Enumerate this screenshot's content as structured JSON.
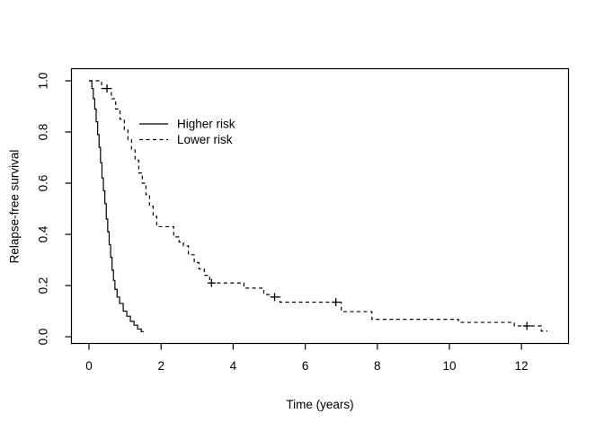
{
  "page": {
    "background_color": "#ffffff",
    "foreground_color": "#000000"
  },
  "chart_data": {
    "type": "line",
    "subtype": "kaplan-meier-step",
    "title": "",
    "xlabel": "Time (years)",
    "ylabel": "Relapse-free survival",
    "x_ticks": [
      0,
      2,
      4,
      6,
      8,
      10,
      12
    ],
    "y_ticks": [
      0.0,
      0.2,
      0.4,
      0.6,
      0.8,
      1.0
    ],
    "y_tick_labels": [
      "0.0",
      "0.2",
      "0.4",
      "0.6",
      "0.8",
      "1.0"
    ],
    "xlim": [
      0,
      12.72
    ],
    "ylim": [
      0,
      1
    ],
    "grid": false,
    "box": true,
    "line_color": "#000000",
    "legend": {
      "position": "upper-left-inside",
      "entries": [
        {
          "label": "Higher risk",
          "linestyle": "solid"
        },
        {
          "label": "Lower risk",
          "linestyle": "dashed"
        }
      ]
    },
    "series": [
      {
        "name": "Higher risk",
        "linestyle": "solid",
        "color": "#000000",
        "steps": [
          [
            0,
            1.0
          ],
          [
            0.08,
            0.97
          ],
          [
            0.12,
            0.93
          ],
          [
            0.16,
            0.89
          ],
          [
            0.2,
            0.84
          ],
          [
            0.24,
            0.79
          ],
          [
            0.28,
            0.74
          ],
          [
            0.32,
            0.68
          ],
          [
            0.36,
            0.62
          ],
          [
            0.4,
            0.57
          ],
          [
            0.44,
            0.52
          ],
          [
            0.48,
            0.46
          ],
          [
            0.52,
            0.41
          ],
          [
            0.56,
            0.36
          ],
          [
            0.6,
            0.31
          ],
          [
            0.64,
            0.26
          ],
          [
            0.68,
            0.22
          ],
          [
            0.72,
            0.185
          ],
          [
            0.78,
            0.155
          ],
          [
            0.85,
            0.13
          ],
          [
            0.95,
            0.1
          ],
          [
            1.05,
            0.08
          ],
          [
            1.15,
            0.06
          ],
          [
            1.25,
            0.045
          ],
          [
            1.35,
            0.03
          ],
          [
            1.45,
            0.02
          ]
        ],
        "end_time": 1.52,
        "censors": []
      },
      {
        "name": "Lower risk",
        "linestyle": "dashed",
        "color": "#000000",
        "steps": [
          [
            0,
            1.0
          ],
          [
            0.35,
            0.97
          ],
          [
            0.62,
            0.93
          ],
          [
            0.74,
            0.89
          ],
          [
            0.86,
            0.85
          ],
          [
            0.98,
            0.81
          ],
          [
            1.08,
            0.77
          ],
          [
            1.18,
            0.73
          ],
          [
            1.28,
            0.69
          ],
          [
            1.38,
            0.64
          ],
          [
            1.48,
            0.6
          ],
          [
            1.58,
            0.555
          ],
          [
            1.68,
            0.51
          ],
          [
            1.78,
            0.47
          ],
          [
            1.88,
            0.43
          ],
          [
            2.35,
            0.39
          ],
          [
            2.5,
            0.37
          ],
          [
            2.62,
            0.355
          ],
          [
            2.76,
            0.32
          ],
          [
            2.92,
            0.29
          ],
          [
            3.05,
            0.265
          ],
          [
            3.2,
            0.24
          ],
          [
            3.35,
            0.21
          ],
          [
            4.3,
            0.19
          ],
          [
            4.85,
            0.165
          ],
          [
            5.05,
            0.155
          ],
          [
            5.3,
            0.135
          ],
          [
            7.0,
            0.098
          ],
          [
            7.85,
            0.068
          ],
          [
            10.25,
            0.056
          ],
          [
            11.8,
            0.042
          ],
          [
            12.55,
            0.022
          ]
        ],
        "end_time": 12.72,
        "censors": [
          [
            0.5,
            0.97
          ],
          [
            3.4,
            0.21
          ],
          [
            5.15,
            0.155
          ],
          [
            6.85,
            0.135
          ],
          [
            12.15,
            0.042
          ]
        ]
      }
    ]
  }
}
